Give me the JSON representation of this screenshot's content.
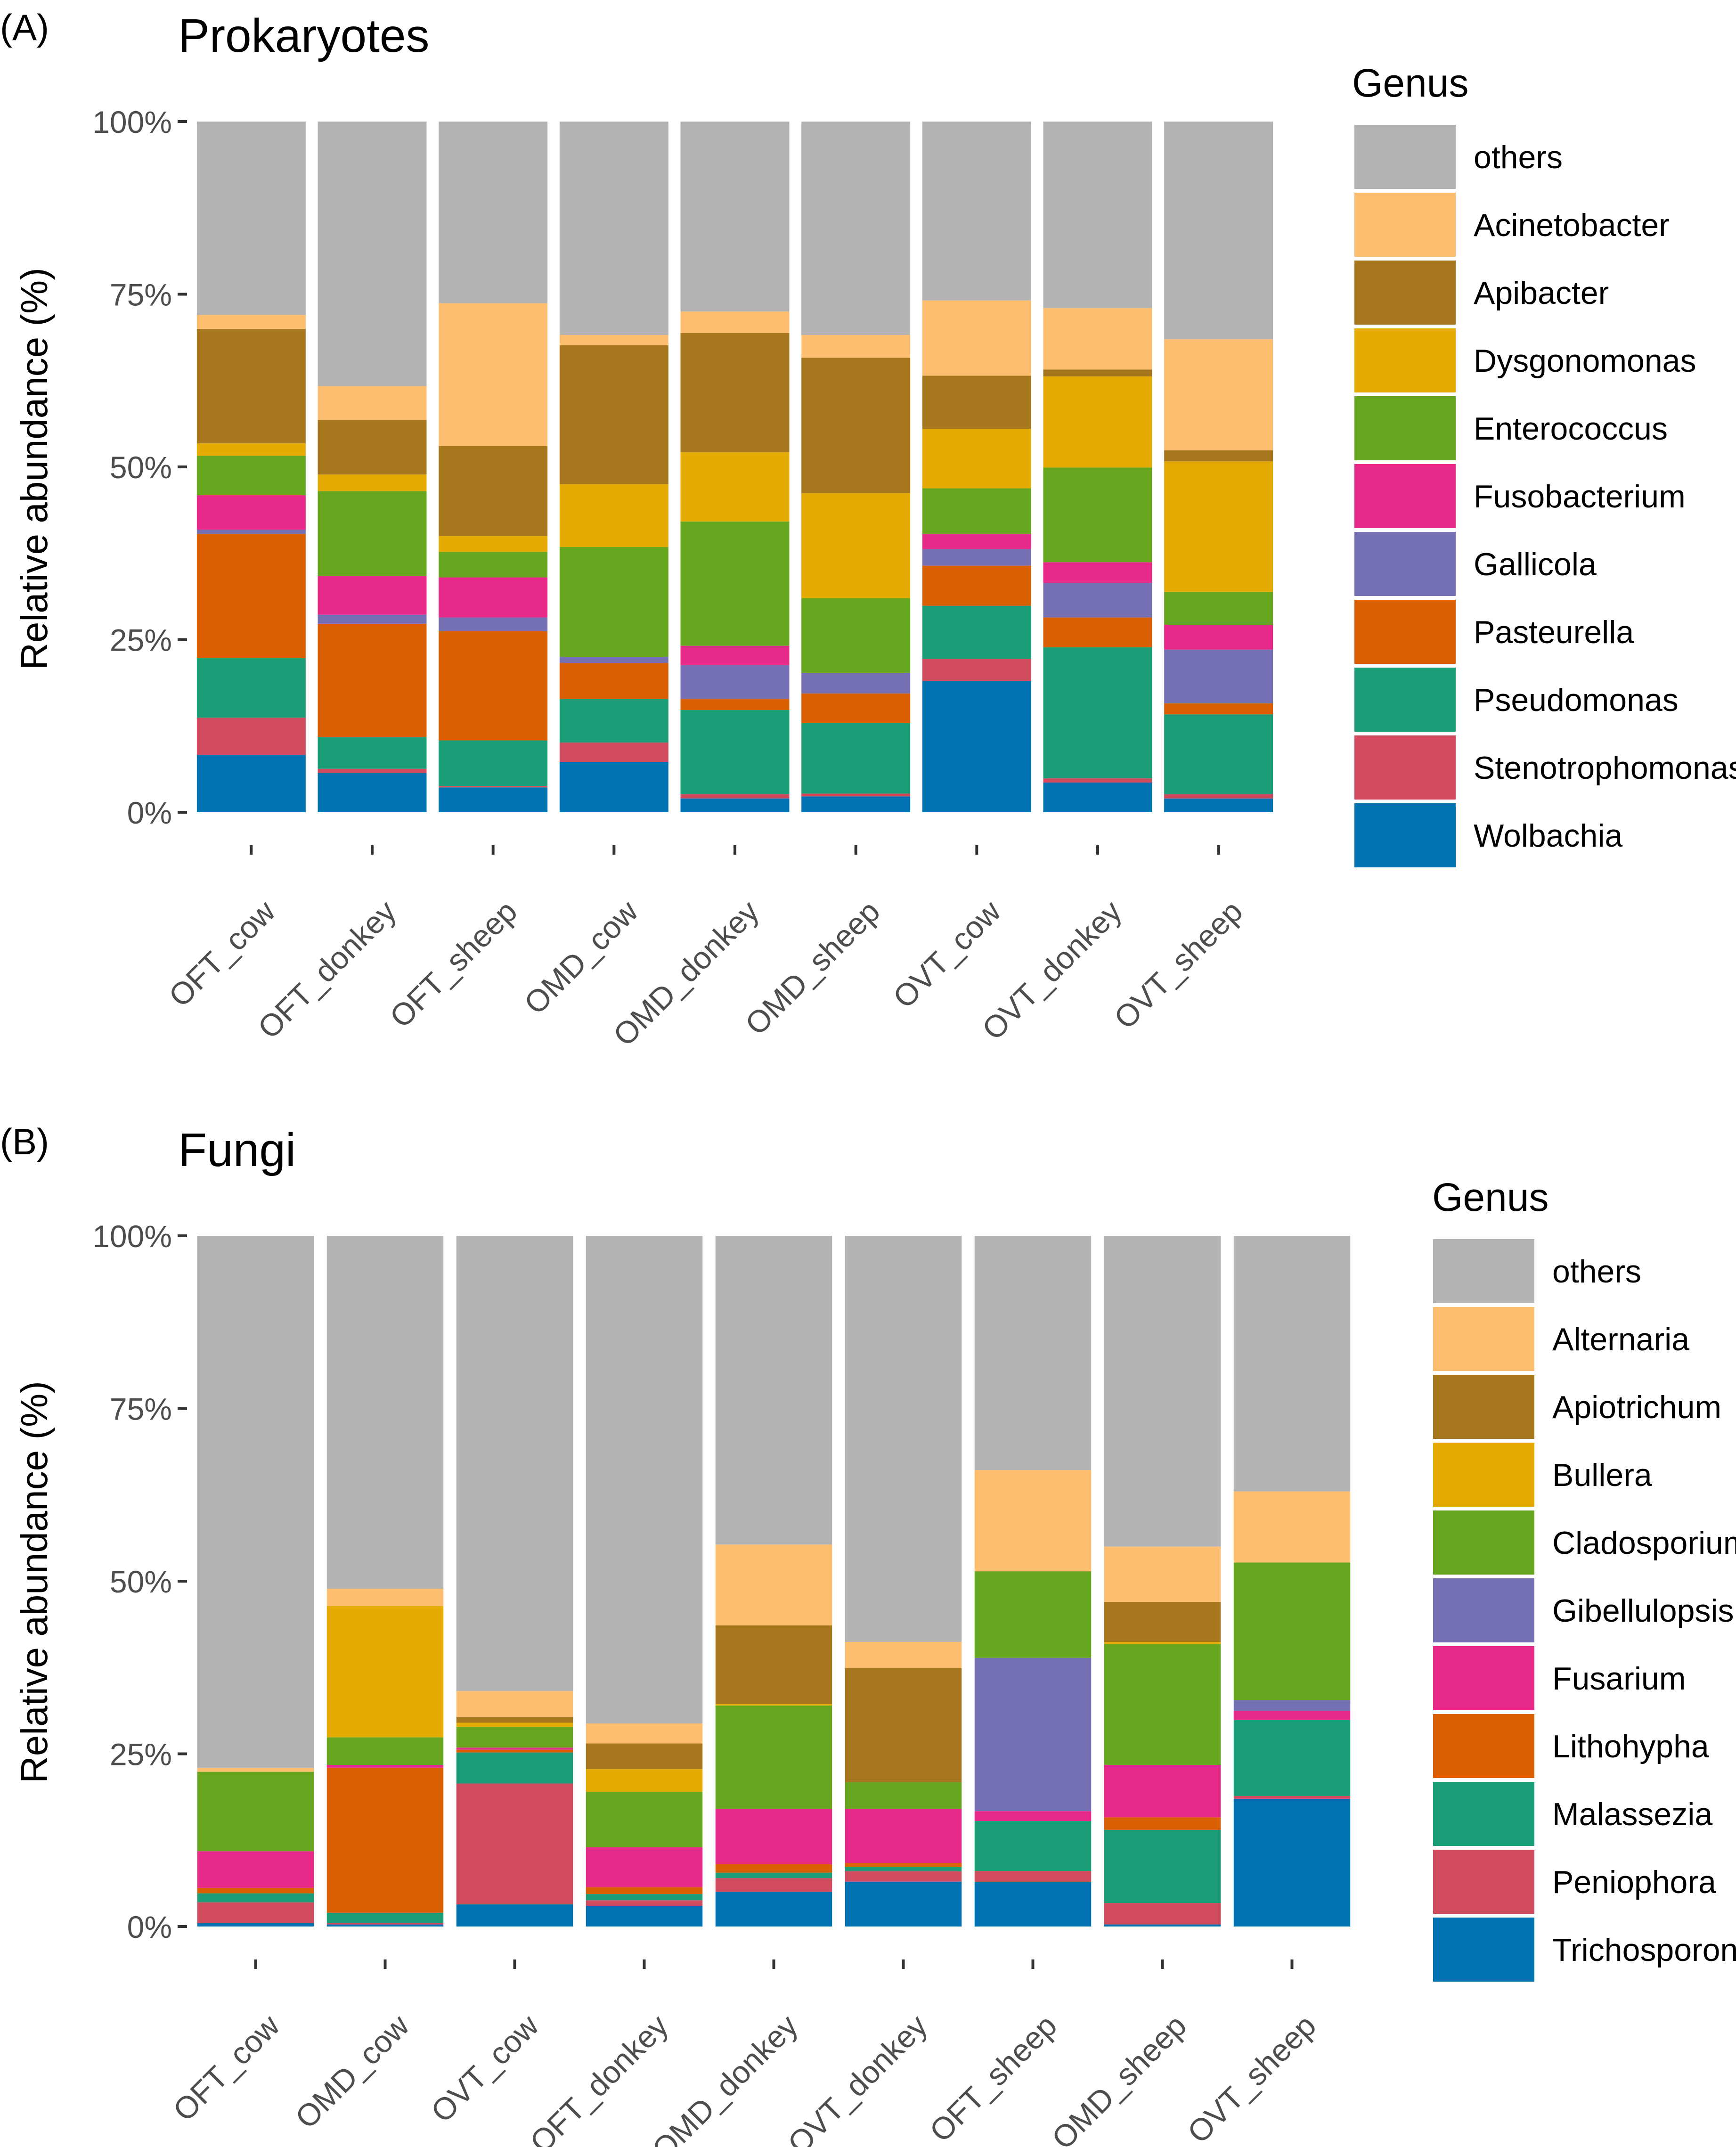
{
  "panels": {
    "A": {
      "tag": "(A)"
    },
    "B": {
      "tag": "(B)"
    }
  },
  "chart_data": [
    {
      "type": "bar",
      "stacked": true,
      "title": "Prokaryotes",
      "xlabel": "",
      "ylabel": "Relative abundance (%)",
      "ylim": [
        0,
        100
      ],
      "yticks": [
        "0%",
        "25%",
        "50%",
        "75%",
        "100%"
      ],
      "legend_title": "Genus",
      "legend_position": "right",
      "categories": [
        "OFT_cow",
        "OFT_donkey",
        "OFT_sheep",
        "OMD_cow",
        "OMD_donkey",
        "OMD_sheep",
        "OVT_cow",
        "OVT_donkey",
        "OVT_sheep"
      ],
      "series": [
        {
          "name": "Wolbachia",
          "color": "#0072B2",
          "values": [
            8.3,
            5.7,
            3.6,
            7.3,
            2.0,
            2.3,
            19.0,
            4.3,
            2.0
          ]
        },
        {
          "name": "Stenotrophomonas",
          "color": "#D04B5E",
          "values": [
            5.4,
            0.6,
            0.2,
            2.8,
            0.6,
            0.4,
            3.2,
            0.6,
            0.6
          ]
        },
        {
          "name": "Pseudomonas",
          "color": "#1B9E77",
          "values": [
            8.6,
            4.6,
            6.6,
            6.3,
            12.2,
            10.2,
            7.7,
            19.0,
            11.6
          ]
        },
        {
          "name": "Pasteurella",
          "color": "#D95F02",
          "values": [
            18.0,
            16.4,
            15.8,
            5.2,
            1.6,
            4.3,
            5.8,
            4.3,
            1.6
          ]
        },
        {
          "name": "Gallicola",
          "color": "#7570B3",
          "values": [
            0.6,
            1.3,
            2.0,
            0.9,
            4.9,
            3.0,
            2.4,
            5.0,
            7.8
          ]
        },
        {
          "name": "Fusobacterium",
          "color": "#E7298A",
          "values": [
            5.0,
            5.6,
            5.8,
            0,
            2.8,
            0,
            2.2,
            3.0,
            3.6
          ]
        },
        {
          "name": "Enterococcus",
          "color": "#66A61E",
          "values": [
            5.7,
            12.3,
            3.7,
            15.9,
            18.0,
            10.8,
            6.6,
            13.7,
            4.8
          ]
        },
        {
          "name": "Dysgonomonas",
          "color": "#E6AB02",
          "values": [
            1.8,
            2.4,
            2.3,
            9.1,
            10.0,
            15.2,
            8.6,
            13.2,
            18.9
          ]
        },
        {
          "name": "Apibacter",
          "color": "#A6761D",
          "values": [
            16.6,
            7.9,
            13.0,
            20.1,
            17.3,
            19.6,
            7.7,
            1.0,
            1.6
          ]
        },
        {
          "name": "Acinetobacter",
          "color": "#FDBF6F",
          "values": [
            2.0,
            4.9,
            20.7,
            1.5,
            3.1,
            3.3,
            10.9,
            8.9,
            16.1
          ]
        },
        {
          "name": "others",
          "color": "#B3B3B3",
          "values": [
            28.0,
            38.3,
            26.3,
            30.9,
            27.5,
            30.9,
            25.9,
            27.0,
            31.6
          ]
        }
      ]
    },
    {
      "type": "bar",
      "stacked": true,
      "title": "Fungi",
      "xlabel": "",
      "ylabel": "Relative abundance (%)",
      "ylim": [
        0,
        100
      ],
      "yticks": [
        "0%",
        "25%",
        "50%",
        "75%",
        "100%"
      ],
      "legend_title": "Genus",
      "legend_position": "right",
      "categories": [
        "OFT_cow",
        "OMD_cow",
        "OVT_cow",
        "OFT_donkey",
        "OMD_donkey",
        "OVT_donkey",
        "OFT_sheep",
        "OMD_sheep",
        "OVT_sheep"
      ],
      "series": [
        {
          "name": "Trichosporon",
          "color": "#0072B2",
          "values": [
            0.5,
            0.3,
            3.2,
            3.0,
            5.0,
            6.5,
            6.3,
            0.3,
            18.5
          ]
        },
        {
          "name": "Peniophora",
          "color": "#D04B5E",
          "values": [
            3.0,
            0.2,
            17.5,
            0.8,
            2.0,
            1.5,
            1.6,
            3.1,
            0.4
          ]
        },
        {
          "name": "Malassezia",
          "color": "#1B9E77",
          "values": [
            1.3,
            1.5,
            4.5,
            0.9,
            0.8,
            0.6,
            7.1,
            10.6,
            11.0
          ]
        },
        {
          "name": "Lithohypha",
          "color": "#D95F02",
          "values": [
            0.8,
            21.0,
            0.4,
            1.0,
            1.2,
            0.6,
            0,
            1.8,
            0
          ]
        },
        {
          "name": "Fusarium",
          "color": "#E7298A",
          "values": [
            5.3,
            0.4,
            0.3,
            5.8,
            8.0,
            7.8,
            1.4,
            7.6,
            1.3
          ]
        },
        {
          "name": "Gibellulopsis",
          "color": "#7570B3",
          "values": [
            0,
            0,
            0,
            0,
            0,
            0,
            21.8,
            0,
            1.6
          ]
        },
        {
          "name": "Cladosporium",
          "color": "#66A61E",
          "values": [
            11.5,
            4.0,
            3.0,
            8.0,
            15.0,
            3.9,
            12.3,
            17.5,
            19.9
          ]
        },
        {
          "name": "Bullera",
          "color": "#E6AB02",
          "values": [
            0,
            19.0,
            0.6,
            3.3,
            0.2,
            0,
            0,
            0.3,
            0
          ]
        },
        {
          "name": "Apiotrichum",
          "color": "#A6761D",
          "values": [
            0,
            0,
            0.8,
            3.7,
            11.4,
            16.5,
            0,
            5.8,
            0
          ]
        },
        {
          "name": "Alternaria",
          "color": "#FDBF6F",
          "values": [
            0.6,
            2.5,
            3.8,
            2.9,
            11.7,
            3.8,
            14.4,
            8.0,
            10.3
          ]
        },
        {
          "name": "others",
          "color": "#B3B3B3",
          "values": [
            77.0,
            51.1,
            65.9,
            70.6,
            44.7,
            58.8,
            33.3,
            45.0,
            37.0
          ]
        }
      ]
    }
  ]
}
